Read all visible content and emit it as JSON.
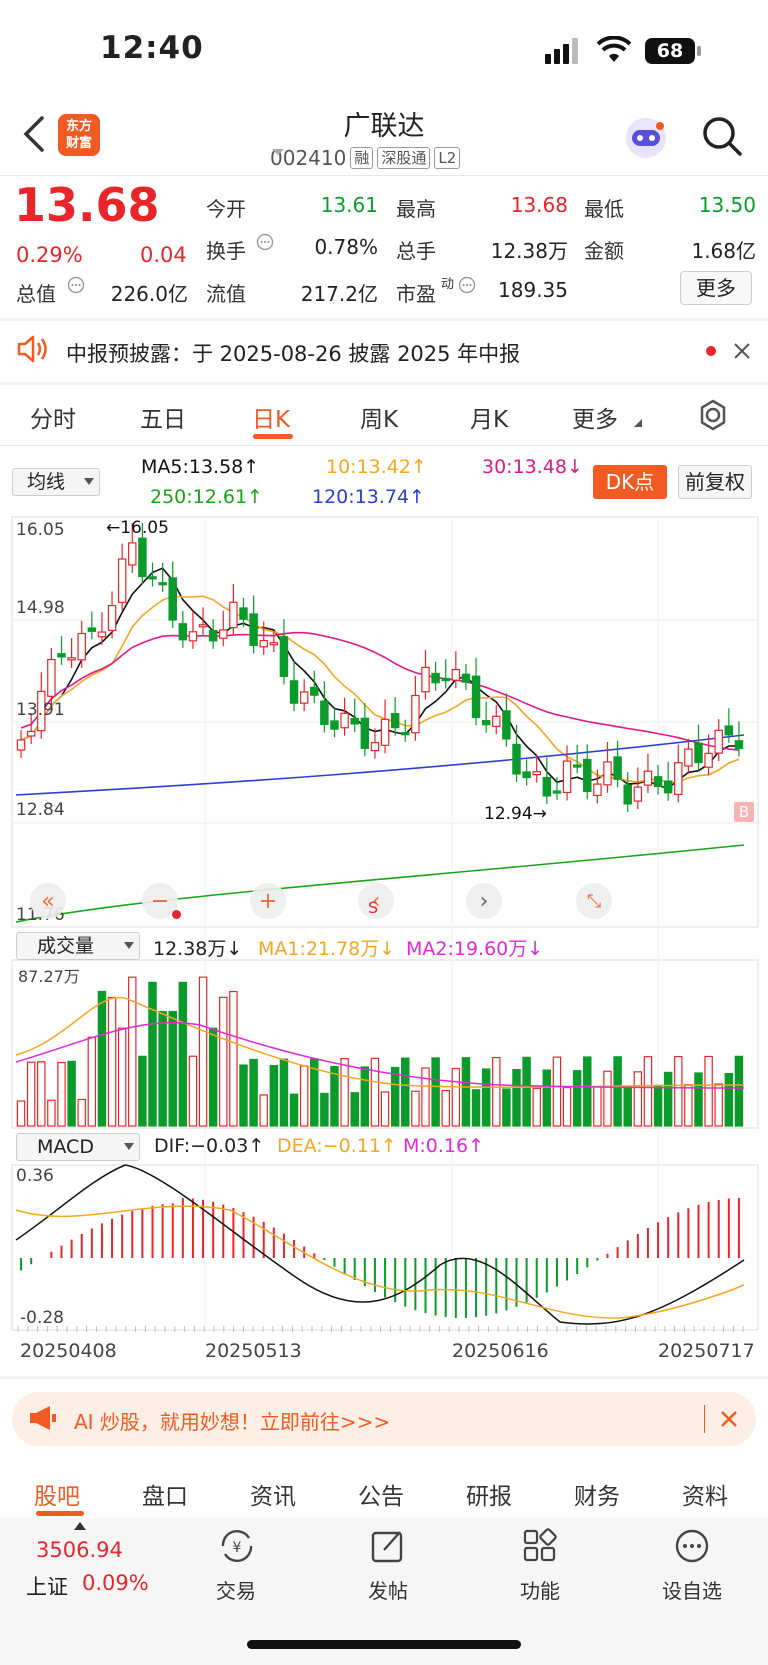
{
  "status_bar": {
    "time": "12:40",
    "battery": "68"
  },
  "header": {
    "logo_line1": "东方",
    "logo_line2": "财富",
    "name": "广联达",
    "code": "002410",
    "tags": [
      "融",
      "深股通",
      "L2"
    ]
  },
  "quote": {
    "price": "13.68",
    "change_pct": "0.29%",
    "change": "0.04",
    "open_label": "今开",
    "open": "13.61",
    "high_label": "最高",
    "high": "13.68",
    "low_label": "最低",
    "low": "13.50",
    "turnover_label": "换手",
    "turnover": "0.78%",
    "volume_label": "总手",
    "volume": "12.38万",
    "amount_label": "金额",
    "amount": "1.68亿",
    "mcap_label": "总值",
    "mcap": "226.0亿",
    "float_label": "流值",
    "float_cap": "217.2亿",
    "pe_label": "市盈",
    "pe_sup": "动",
    "pe": "189.35",
    "more_label": "更多"
  },
  "notice": {
    "text": "中报预披露：于 2025-08-26 披露 2025 年中报"
  },
  "period_tabs": [
    "分时",
    "五日",
    "日K",
    "周K",
    "月K",
    "更多"
  ],
  "ma_bar": {
    "select": "均线",
    "ma5": "MA5:13.58↑",
    "ma10": "10:13.42↑",
    "ma30": "30:13.48↓",
    "ma250": "250:12.61↑",
    "ma120": "120:13.74↑",
    "dk_label": "DK点",
    "adjust_label": "前复权"
  },
  "colors": {
    "up": "#e8262a",
    "down": "#0a9b2b",
    "accent": "#f15a22",
    "ma5": "#111111",
    "ma10": "#f5a623",
    "ma30": "#e0198a",
    "ma120": "#2b3fcf",
    "ma250": "#19a319"
  },
  "kline": {
    "y_labels": [
      "16.05",
      "14.98",
      "13.91",
      "12.84",
      "11.76"
    ],
    "high_annotation": "←16.05",
    "low_annotation": "12.94→",
    "b_marker": "B",
    "s_marker": "S"
  },
  "volume_bar": {
    "select": "成交量",
    "vol": "12.38万↓",
    "ma1": "MA1:21.78万↓",
    "ma2": "MA2:19.60万↓",
    "max_label": "87.27万"
  },
  "macd_bar": {
    "select": "MACD",
    "dif": "DIF:−0.03↑",
    "dea": "DEA:−0.11↑",
    "m": "M:0.16↑",
    "max_label": "0.36",
    "min_label": "-0.28"
  },
  "dates": [
    "20250408",
    "20250513",
    "20250616",
    "20250717"
  ],
  "ad": {
    "text": "AI 炒股，就用妙想！立即前往>>>"
  },
  "bottom_tabs": [
    "股吧",
    "盘口",
    "资讯",
    "公告",
    "研报",
    "财务",
    "资料"
  ],
  "index": {
    "value": "3506.94",
    "name": "上证",
    "pct": "0.09%"
  },
  "toolbar": [
    "交易",
    "发帖",
    "功能",
    "设自选"
  ]
}
